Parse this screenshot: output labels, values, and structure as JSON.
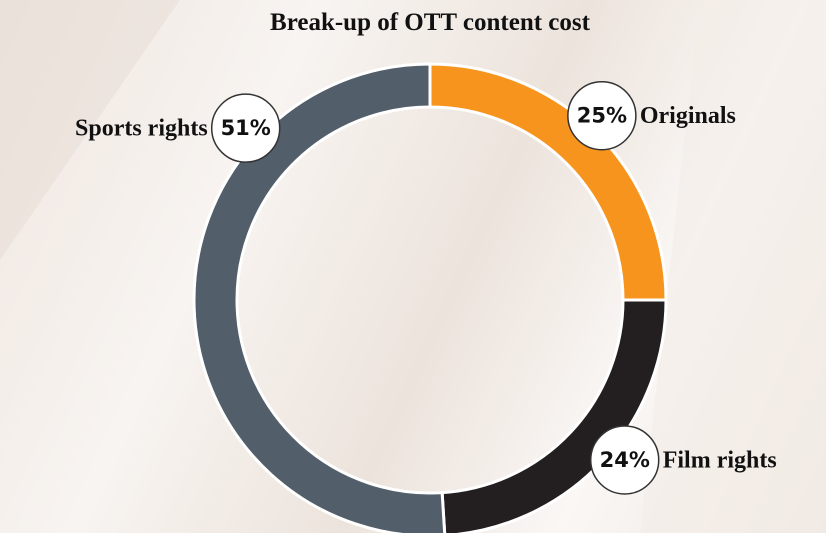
{
  "chart_data": {
    "type": "donut",
    "title": "Break-up of OTT content cost",
    "categories": [
      "Originals",
      "Film rights",
      "Sports rights"
    ],
    "values": [
      25,
      24,
      51
    ],
    "value_labels": [
      "25%",
      "24%",
      "51%"
    ],
    "colors": [
      "#f7941d",
      "#231f20",
      "#525e6a"
    ]
  }
}
